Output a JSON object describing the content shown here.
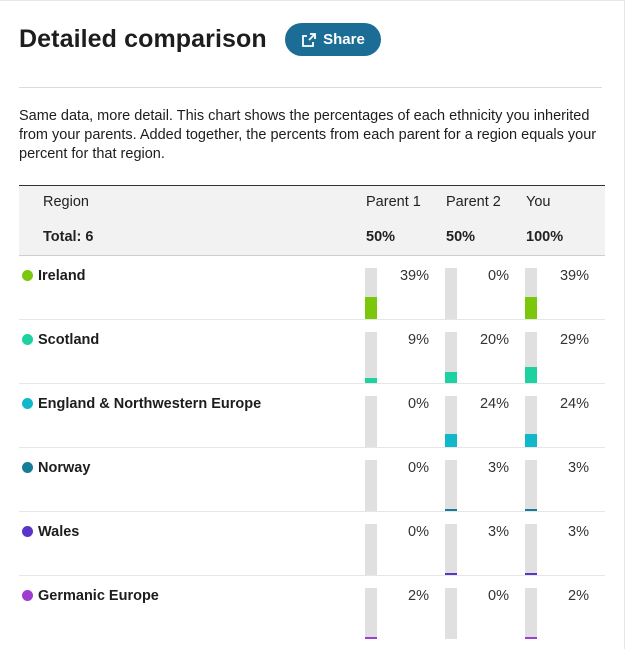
{
  "header": {
    "title": "Detailed comparison",
    "share_label": "Share"
  },
  "intro": "Same data, more detail. This chart shows the percentages of each ethnicity you inherited from your parents. Added together, the percents from each parent for a region equals your percent for that region.",
  "table": {
    "col_region": "Region",
    "col_parent1": "Parent 1",
    "col_parent2": "Parent 2",
    "col_you": "You",
    "total_label": "Total: 6",
    "total_parent1": "50%",
    "total_parent2": "50%",
    "total_you": "100%",
    "rows": [
      {
        "name": "Ireland",
        "color": "#7ac70c",
        "p1": 39,
        "p2": 0,
        "you": 39,
        "p1_label": "39%",
        "p2_label": "0%",
        "you_label": "39%"
      },
      {
        "name": "Scotland",
        "color": "#1dd1a1",
        "p1": 9,
        "p2": 20,
        "you": 29,
        "p1_label": "9%",
        "p2_label": "20%",
        "you_label": "29%"
      },
      {
        "name": "England & Northwestern Europe",
        "color": "#12b8c9",
        "p1": 0,
        "p2": 24,
        "you": 24,
        "p1_label": "0%",
        "p2_label": "24%",
        "you_label": "24%"
      },
      {
        "name": "Norway",
        "color": "#167d96",
        "p1": 0,
        "p2": 3,
        "you": 3,
        "p1_label": "0%",
        "p2_label": "3%",
        "you_label": "3%"
      },
      {
        "name": "Wales",
        "color": "#5b35c9",
        "p1": 0,
        "p2": 3,
        "you": 3,
        "p1_label": "0%",
        "p2_label": "3%",
        "you_label": "3%"
      },
      {
        "name": "Germanic Europe",
        "color": "#9d3ed0",
        "p1": 2,
        "p2": 0,
        "you": 2,
        "p1_label": "2%",
        "p2_label": "0%",
        "you_label": "2%"
      }
    ]
  }
}
